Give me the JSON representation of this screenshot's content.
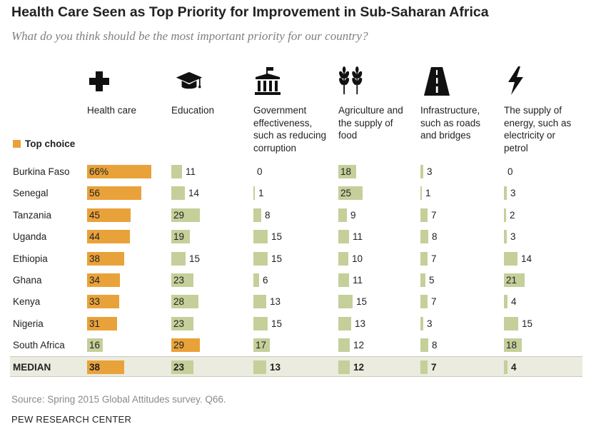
{
  "title": "Health Care Seen as Top Priority for Improvement in Sub-Saharan Africa",
  "subtitle": "What do you think should be the most important priority for our country?",
  "legend_label": "Top choice",
  "colors": {
    "top": "#e9a23a",
    "other": "#c5cf9a",
    "median_band": "#ebebdf"
  },
  "columns": [
    {
      "icon": "cross-icon",
      "label": "Health care"
    },
    {
      "icon": "graduation-cap-icon",
      "label": "Education"
    },
    {
      "icon": "government-building-icon",
      "label": "Government effectiveness, such as reducing corruption"
    },
    {
      "icon": "wheat-icon",
      "label": "Agriculture and the supply of food"
    },
    {
      "icon": "road-icon",
      "label": "Infrastructure, such as roads and bridges"
    },
    {
      "icon": "lightning-bolt-icon",
      "label": "The supply of energy, such as electricity or petrol"
    }
  ],
  "chart_data": {
    "type": "bar",
    "categories": [
      "Burkina Faso",
      "Senegal",
      "Tanzania",
      "Uganda",
      "Ethiopia",
      "Ghana",
      "Kenya",
      "Nigeria",
      "South Africa",
      "MEDIAN"
    ],
    "series": [
      {
        "name": "Health care",
        "values": [
          66,
          56,
          45,
          44,
          38,
          34,
          33,
          31,
          16,
          38
        ]
      },
      {
        "name": "Education",
        "values": [
          11,
          14,
          29,
          19,
          15,
          23,
          28,
          23,
          29,
          23
        ]
      },
      {
        "name": "Government effectiveness, such as reducing corruption",
        "values": [
          0,
          1,
          8,
          15,
          15,
          6,
          13,
          15,
          17,
          13
        ]
      },
      {
        "name": "Agriculture and the supply of food",
        "values": [
          18,
          25,
          9,
          11,
          10,
          11,
          15,
          13,
          12,
          12
        ]
      },
      {
        "name": "Infrastructure, such as roads and bridges",
        "values": [
          3,
          1,
          7,
          8,
          7,
          5,
          7,
          3,
          8,
          7
        ]
      },
      {
        "name": "The supply of energy, such as electricity or petrol",
        "values": [
          0,
          3,
          2,
          3,
          14,
          21,
          4,
          15,
          18,
          4
        ]
      }
    ],
    "value_labels": [
      [
        "66%",
        "11",
        "0",
        "18",
        "3",
        "0"
      ],
      [
        "56",
        "14",
        "1",
        "25",
        "1",
        "3"
      ],
      [
        "45",
        "29",
        "8",
        "9",
        "7",
        "2"
      ],
      [
        "44",
        "19",
        "15",
        "11",
        "8",
        "3"
      ],
      [
        "38",
        "15",
        "15",
        "10",
        "7",
        "14"
      ],
      [
        "34",
        "23",
        "6",
        "11",
        "5",
        "21"
      ],
      [
        "33",
        "28",
        "13",
        "15",
        "7",
        "4"
      ],
      [
        "31",
        "23",
        "15",
        "13",
        "3",
        "15"
      ],
      [
        "16",
        "29",
        "17",
        "12",
        "8",
        "18"
      ],
      [
        "38",
        "23",
        "13",
        "12",
        "7",
        "4"
      ]
    ],
    "top_choice": [
      0,
      0,
      0,
      0,
      0,
      0,
      0,
      0,
      1,
      0
    ],
    "highlight_row": "MEDIAN"
  },
  "source": "Source: Spring 2015 Global Attitudes survey. Q66.",
  "organization": "PEW RESEARCH CENTER"
}
